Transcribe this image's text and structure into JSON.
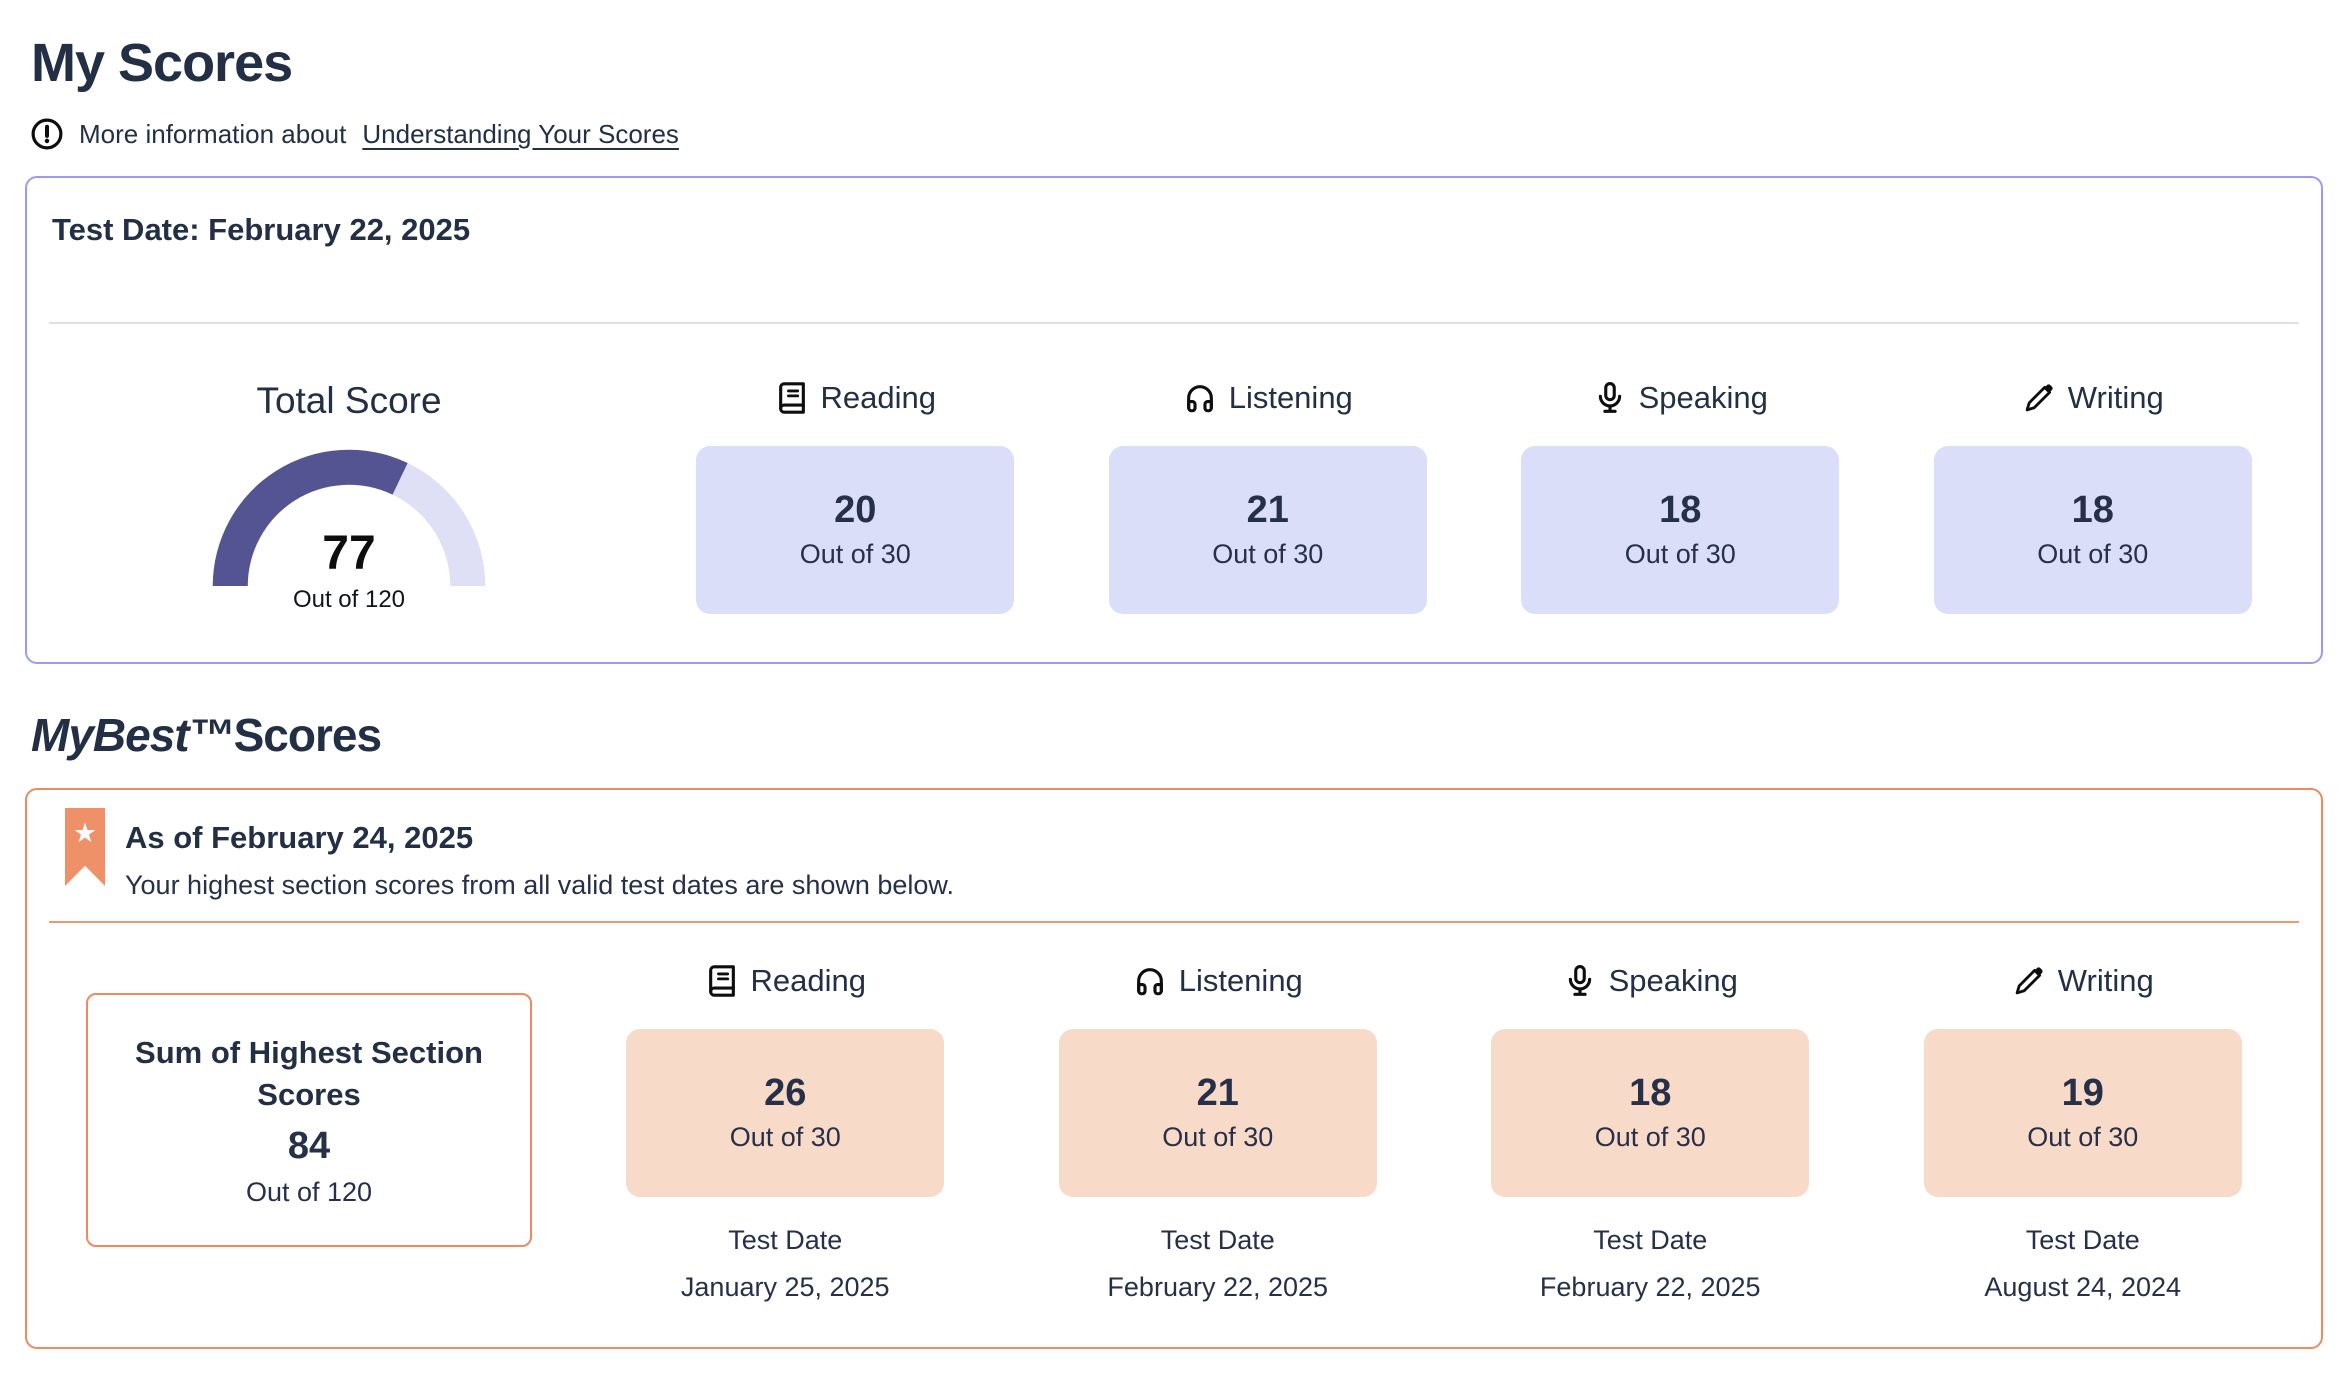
{
  "page": {
    "title": "My Scores",
    "info_prefix": "More information about",
    "info_link": "Understanding Your Scores"
  },
  "colors": {
    "navy_text": "#273049",
    "lavender_box": "#DBDEF8",
    "lavender_border": "#9B9BF2",
    "gauge_fill": "#555492",
    "gauge_track": "#DFE0F6",
    "orange_border": "#EC8A60",
    "peach_box": "#F8DAC9",
    "bookmark_orange": "#EE9169"
  },
  "latest_test": {
    "test_date_heading": "Test Date: February 22, 2025",
    "total": {
      "label": "Total Score",
      "score": "77",
      "out_of": "Out of 120",
      "value": 77,
      "max": 120
    },
    "sections": [
      {
        "label": "Reading",
        "icon": "book-icon",
        "score": "20",
        "out_of": "Out of 30"
      },
      {
        "label": "Listening",
        "icon": "headphones-icon",
        "score": "21",
        "out_of": "Out of 30"
      },
      {
        "label": "Speaking",
        "icon": "microphone-icon",
        "score": "18",
        "out_of": "Out of 30"
      },
      {
        "label": "Writing",
        "icon": "pencil-icon",
        "score": "18",
        "out_of": "Out of 30"
      }
    ]
  },
  "mybest": {
    "title_brand": "MyBest™",
    "title_rest": "Scores",
    "as_of": "As of February 24, 2025",
    "subtitle": "Your highest section scores from all valid test dates are shown below.",
    "sum": {
      "label": "Sum of Highest Section Scores",
      "score": "84",
      "out_of": "Out of 120"
    },
    "sections": [
      {
        "label": "Reading",
        "icon": "book-icon",
        "score": "26",
        "out_of": "Out of 30",
        "test_date_label": "Test Date",
        "test_date": "January 25, 2025"
      },
      {
        "label": "Listening",
        "icon": "headphones-icon",
        "score": "21",
        "out_of": "Out of 30",
        "test_date_label": "Test Date",
        "test_date": "February 22, 2025"
      },
      {
        "label": "Speaking",
        "icon": "microphone-icon",
        "score": "18",
        "out_of": "Out of 30",
        "test_date_label": "Test Date",
        "test_date": "February 22, 2025"
      },
      {
        "label": "Writing",
        "icon": "pencil-icon",
        "score": "19",
        "out_of": "Out of 30",
        "test_date_label": "Test Date",
        "test_date": "August 24, 2024"
      }
    ]
  }
}
